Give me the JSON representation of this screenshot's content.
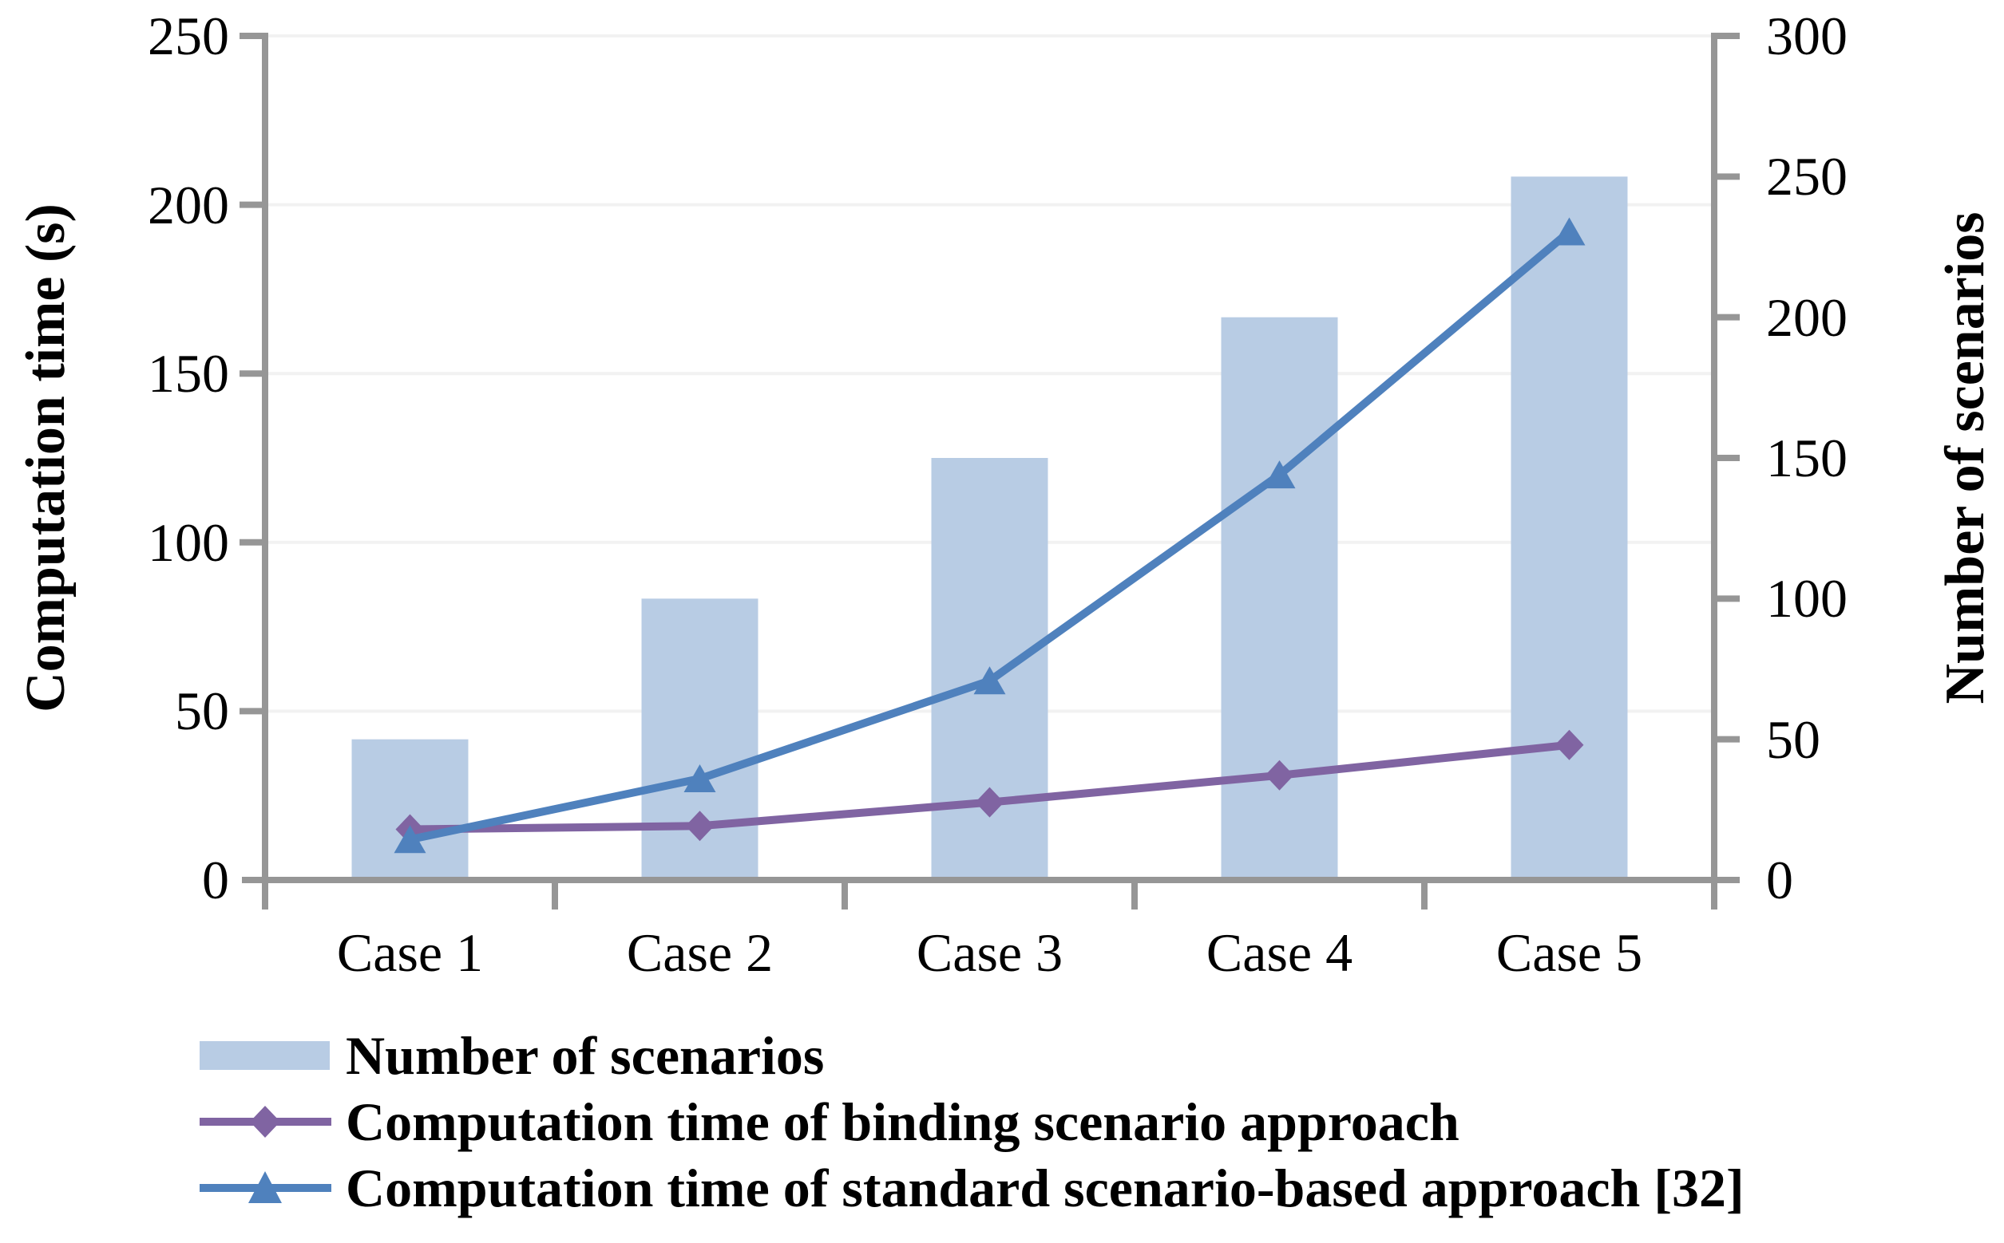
{
  "chart_data": {
    "type": "combo-bar-line",
    "categories": [
      "Case 1",
      "Case 2",
      "Case 3",
      "Case 4",
      "Case 5"
    ],
    "series": [
      {
        "name": "Number of scenarios",
        "type": "bar",
        "axis": "right",
        "values": [
          50,
          100,
          150,
          200,
          250
        ],
        "color": "#B8CCE4"
      },
      {
        "name": "Computation time of binding scenario approach",
        "type": "line",
        "marker": "diamond",
        "axis": "left",
        "values": [
          15,
          16,
          23,
          31,
          40
        ],
        "color": "#8064A2"
      },
      {
        "name": "Computation time of standard scenario-based approach [32]",
        "type": "line",
        "marker": "triangle",
        "axis": "left",
        "values": [
          12,
          30,
          59,
          120,
          192
        ],
        "color": "#4F81BD"
      }
    ],
    "left_axis": {
      "title": "Computation time (s)",
      "min": 0,
      "max": 250,
      "tick_step": 50,
      "tick_labels": [
        "0",
        "50",
        "100",
        "150",
        "200",
        "250"
      ]
    },
    "right_axis": {
      "title": "Number of scenarios",
      "min": 0,
      "max": 300,
      "tick_step": 50,
      "tick_labels": [
        "0",
        "50",
        "100",
        "150",
        "200",
        "250",
        "300"
      ]
    },
    "grid": true,
    "legend_position": "bottom-left",
    "colors": {
      "axis": "#969696",
      "gridline": "#F2F2F2",
      "text": "#000000",
      "background": "#FFFFFF"
    }
  }
}
